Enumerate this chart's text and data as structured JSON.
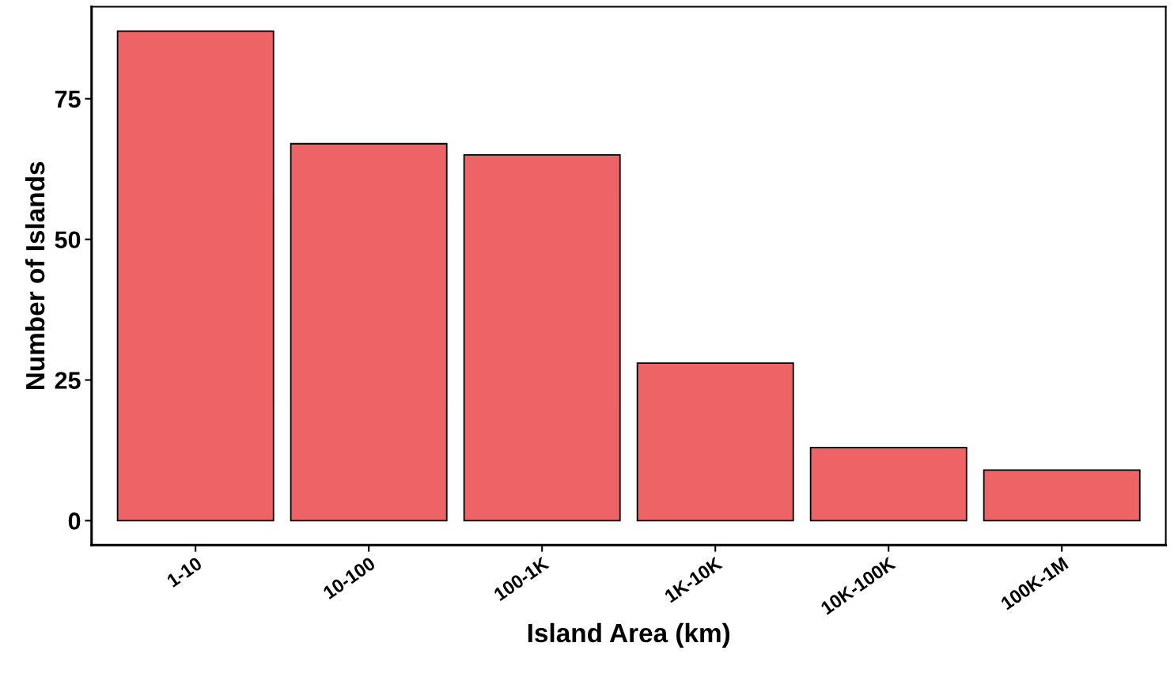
{
  "chart_data": {
    "type": "bar",
    "xlabel": "Island Area (km)",
    "ylabel": "Number of Islands",
    "categories": [
      "1-10",
      "10-100",
      "100-1K",
      "1K-10K",
      "10K-100K",
      "100K-1M"
    ],
    "values": [
      87,
      67,
      65,
      28,
      13,
      9
    ],
    "color": "#ee6466",
    "ylim": [
      -4.35,
      91.35
    ],
    "yticks": [
      0,
      25,
      50,
      75
    ],
    "grid": false
  }
}
